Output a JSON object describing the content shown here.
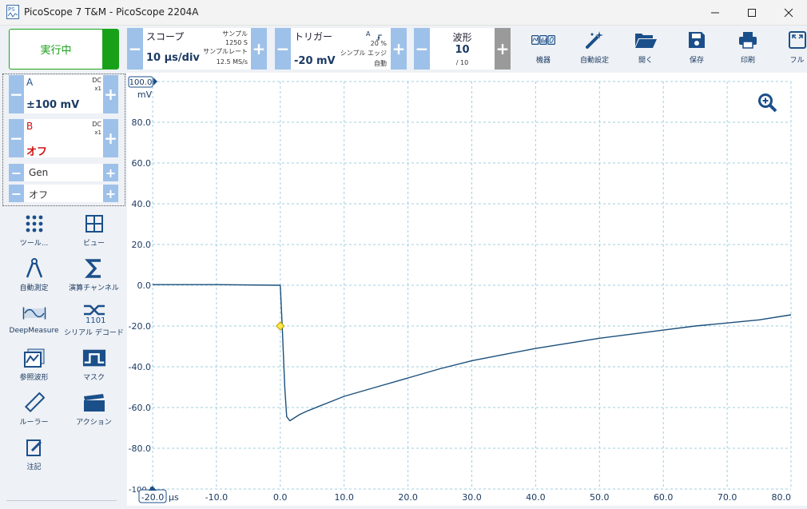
{
  "window": {
    "title": "PicoScope 7 T&M  - PicoScope 2204A",
    "logo_text": "PS",
    "controls": [
      "minimize-icon",
      "maximize-icon",
      "close-icon"
    ]
  },
  "toolbar": {
    "run_button": {
      "label": "実行中",
      "color": "#19a019"
    },
    "scope": {
      "title": "スコープ",
      "value": "10 μs/div",
      "samples_label": "サンプル",
      "samples_value": "1250 S",
      "rate_label": "サンプルレート",
      "rate_value": "12.5 MS/s"
    },
    "trigger": {
      "title": "トリガー",
      "value": "-20 mV",
      "channel": "A",
      "percent": "20 %",
      "type": "シンプル エッジ",
      "mode": "自動"
    },
    "waveform": {
      "title": "波形",
      "value": "10",
      "total": "/ 10"
    },
    "buttons": [
      {
        "id": "devices",
        "label": "機器",
        "icon": "waveform-devices-icon"
      },
      {
        "id": "autosetup",
        "label": "自動設定",
        "icon": "magic-wand-icon"
      },
      {
        "id": "open",
        "label": "開く",
        "icon": "folder-open-icon"
      },
      {
        "id": "save",
        "label": "保存",
        "icon": "floppy-save-icon"
      },
      {
        "id": "print",
        "label": "印刷",
        "icon": "printer-icon"
      },
      {
        "id": "fullscreen",
        "label": "フル",
        "icon": "fullscreen-icon"
      }
    ]
  },
  "channels": {
    "a": {
      "name": "A",
      "coupling": "DC",
      "probe": "x1",
      "range": "±100 mV",
      "color": "#1f4e8c"
    },
    "b": {
      "name": "B",
      "coupling": "DC",
      "probe": "x1",
      "range": "オフ",
      "color": "#d01010"
    },
    "gen": {
      "name": "Gen",
      "state": "オフ"
    }
  },
  "tools": [
    {
      "label": "ツール...",
      "icon": "dots-grid-icon"
    },
    {
      "label": "ビュー",
      "icon": "view-grid-icon"
    },
    {
      "label": "自動測定",
      "icon": "caliper-icon"
    },
    {
      "label": "演算チャンネル",
      "icon": "sigma-icon"
    },
    {
      "label": "DeepMeasure",
      "icon": "deepmeasure-icon"
    },
    {
      "label": "シリアル デコード",
      "icon": "serial-decode-icon"
    },
    {
      "label": "参照波形",
      "icon": "reference-waveform-icon"
    },
    {
      "label": "マスク",
      "icon": "mask-icon"
    },
    {
      "label": "ルーラー",
      "icon": "ruler-icon"
    },
    {
      "label": "アクション",
      "icon": "clapperboard-icon"
    },
    {
      "label": "注記",
      "icon": "note-pencil-icon"
    }
  ],
  "chart_data": {
    "type": "line",
    "ylabel": "mV",
    "xunit": "μs",
    "ylim": [
      -100,
      100
    ],
    "xlim": [
      -20,
      80
    ],
    "yticks": [
      "100.0",
      "80.0",
      "60.0",
      "40.0",
      "20.0",
      "0.0",
      "-20.0",
      "-40.0",
      "-60.0",
      "-80.0",
      "-100.0"
    ],
    "xticks": [
      "-20.0",
      "-10.0",
      "0.0",
      "10.0",
      "20.0",
      "30.0",
      "40.0",
      "50.0",
      "60.0",
      "70.0",
      "80.0"
    ],
    "grid": true,
    "trigger_marker": {
      "x": 0.0,
      "y": -20.0
    },
    "series": [
      {
        "color": "#1a4f7a",
        "x": [
          -20,
          -10,
          0,
          0.3,
          0.7,
          1.0,
          1.5,
          2,
          3,
          4,
          6,
          8,
          10,
          15,
          20,
          25,
          30,
          35,
          40,
          45,
          50,
          55,
          60,
          65,
          70,
          75,
          80
        ],
        "y": [
          0.3,
          0.3,
          0.0,
          -20,
          -50,
          -64.5,
          -66.5,
          -65.5,
          -63.5,
          -62,
          -59.5,
          -57,
          -54.5,
          -50,
          -45.5,
          -41,
          -37,
          -34,
          -31,
          -28.5,
          -26,
          -24,
          -22,
          -20,
          -18.5,
          -17,
          -14.5
        ]
      }
    ]
  },
  "zoom_icon": "zoom-in-icon"
}
